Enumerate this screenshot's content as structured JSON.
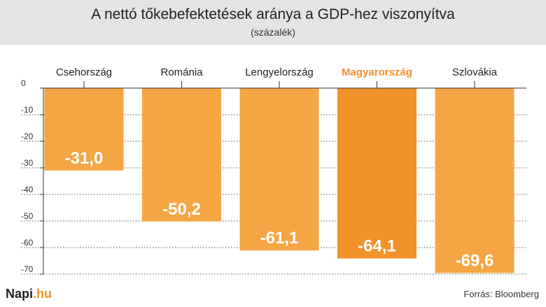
{
  "header": {
    "title": "A nettó tőkebefektetések aránya a GDP-hez viszonyítva",
    "subtitle": "(százalék)"
  },
  "footer": {
    "brand_main": "Napi",
    "brand_suffix": ".hu",
    "source": "Forrás: Bloomberg"
  },
  "colors": {
    "bar": "#f5a644",
    "bar_highlight": "#f0912a",
    "highlight_label": "#f0912a",
    "header_bg": "#e4e4e4"
  },
  "chart_data": {
    "type": "bar",
    "categories": [
      "Csehország",
      "Románia",
      "Lengyelország",
      "Magyarország",
      "Szlovákia"
    ],
    "values": [
      -31.0,
      -50.2,
      -61.1,
      -64.1,
      -69.6
    ],
    "data_labels": [
      "-31,0",
      "-50,2",
      "-61,1",
      "-64,1",
      "-69,6"
    ],
    "highlight_category": "Magyarország",
    "yticks": [
      0,
      -10,
      -20,
      -30,
      -40,
      -50,
      -60,
      -70
    ],
    "ylim": [
      -72,
      0
    ],
    "title": "",
    "xlabel": "",
    "ylabel": "",
    "grid": "dotted horizontal",
    "category_labels_position": "top"
  }
}
